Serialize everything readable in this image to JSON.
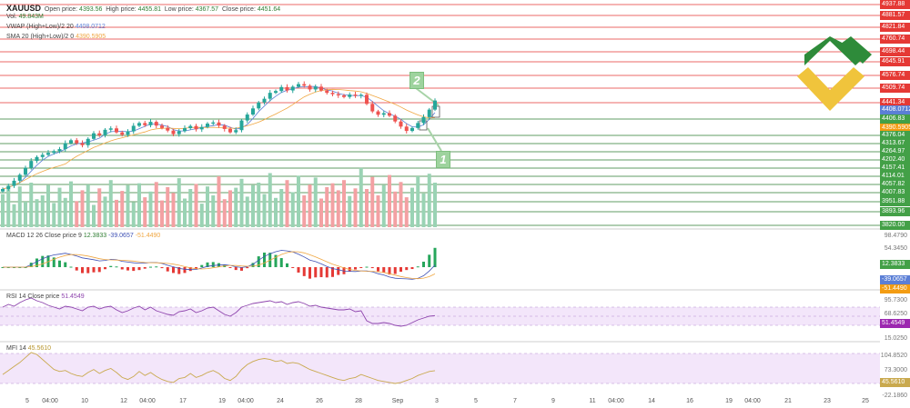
{
  "header": {
    "symbol": "XAUUSD",
    "ohlc": [
      {
        "label": "Open price:",
        "value": "4393.56"
      },
      {
        "label": "High price:",
        "value": "4455.81"
      },
      {
        "label": "Low price:",
        "value": "4367.57"
      },
      {
        "label": "Close price:",
        "value": "4451.64"
      }
    ],
    "vol": {
      "label": "Vol.",
      "value": "49.843M"
    },
    "vwap": {
      "label": "VWAP (High+Low)/2 20",
      "value": "4408.0712"
    },
    "sma": {
      "label": "SMA 20 (High+Low)/2 0",
      "value": "4390.5905"
    }
  },
  "indicators": {
    "macd": {
      "label": "MACD 12 26 Close price 9",
      "v1": "12.3833",
      "v2": "-39.0657",
      "v3": "-51.4490"
    },
    "rsi": {
      "label": "RSI 14 Close price",
      "value": "51.4549"
    },
    "mfi": {
      "label": "MFI 14",
      "value": "45.5610"
    }
  },
  "colors": {
    "up": "#26a69a",
    "down": "#ef5350",
    "vol_up": "#9ad3b4",
    "vol_down": "#f3a1a3",
    "level_red": "#e53935",
    "level_green": "#2e7d32",
    "vwap": "#5b7fd6",
    "sma": "#f0a742",
    "macd_fast": "#3f51b5",
    "macd_signal": "#f0a742",
    "osc": "#a97fc4",
    "mfi_line": "#c9a94e",
    "band": "#eedcf8"
  },
  "price_tags": [
    {
      "value": "4937.88",
      "kind": "red"
    },
    {
      "value": "4881.57",
      "kind": "red"
    },
    {
      "value": "4821.84",
      "kind": "red"
    },
    {
      "value": "4760.74",
      "kind": "red"
    },
    {
      "value": "4698.44",
      "kind": "red"
    },
    {
      "value": "4645.91",
      "kind": "red"
    },
    {
      "value": "4576.74",
      "kind": "red"
    },
    {
      "value": "4509.74",
      "kind": "red"
    },
    {
      "value": "4441.34",
      "kind": "red"
    },
    {
      "value": "4408.0712",
      "kind": "blue"
    },
    {
      "value": "4406.83",
      "kind": "green"
    },
    {
      "value": "4390.5905",
      "kind": "orange"
    },
    {
      "value": "4376.04",
      "kind": "green"
    },
    {
      "value": "4313.67",
      "kind": "green"
    },
    {
      "value": "4264.97",
      "kind": "green"
    },
    {
      "value": "4202.40",
      "kind": "green"
    },
    {
      "value": "4157.41",
      "kind": "green"
    },
    {
      "value": "4114.01",
      "kind": "green"
    },
    {
      "value": "4057.82",
      "kind": "green"
    },
    {
      "value": "4007.83",
      "kind": "green"
    },
    {
      "value": "3951.88",
      "kind": "green"
    },
    {
      "value": "3893.96",
      "kind": "green"
    },
    {
      "value": "3820.00",
      "kind": "green"
    }
  ],
  "right_axis": {
    "macd_ticks": [
      "98.4790",
      "54.3450"
    ],
    "macd_tags": [
      {
        "value": "12.3833",
        "kind": "green"
      },
      {
        "value": "-39.0657",
        "kind": "blue"
      },
      {
        "value": "-51.4490",
        "kind": "orange"
      }
    ],
    "rsi_ticks": [
      "95.7300",
      "68.6250",
      "15.0250"
    ],
    "rsi_tag": "51.4549",
    "mfi_ticks": [
      "104.8520",
      "73.3000",
      "-22.1860"
    ],
    "mfi_tag": "45.5610"
  },
  "x_axis": [
    "5",
    "04:00",
    "10",
    "12",
    "04:00",
    "17",
    "19",
    "04:00",
    "24",
    "26",
    "28",
    "Sep",
    "3",
    "5",
    "7",
    "9",
    "11",
    "04:00",
    "14",
    "16",
    "19",
    "04:00",
    "21",
    "23",
    "25"
  ],
  "markers": [
    "2",
    "1"
  ],
  "chart_data": {
    "type": "candlestick",
    "close": [
      4004,
      4020,
      4046,
      4076,
      4111,
      4146,
      4166,
      4177,
      4187,
      4196,
      4206,
      4236,
      4251,
      4236,
      4226,
      4258,
      4286,
      4276,
      4304,
      4311,
      4291,
      4279,
      4296,
      4324,
      4338,
      4327,
      4344,
      4325,
      4313,
      4300,
      4282,
      4297,
      4312,
      4323,
      4306,
      4318,
      4335,
      4341,
      4325,
      4308,
      4291,
      4302,
      4351,
      4381,
      4412,
      4442,
      4461,
      4491,
      4500,
      4520,
      4503,
      4522,
      4535,
      4527,
      4508,
      4522,
      4503,
      4491,
      4484,
      4478,
      4470,
      4482,
      4476,
      4481,
      4435,
      4397,
      4380,
      4388,
      4375,
      4346,
      4320,
      4298,
      4313,
      4338,
      4368,
      4406,
      4452
    ],
    "volume": [
      0.52,
      0.6,
      0.36,
      0.64,
      0.4,
      0.7,
      0.44,
      0.5,
      0.66,
      0.38,
      0.62,
      0.46,
      0.72,
      0.41,
      0.58,
      0.67,
      0.35,
      0.61,
      0.48,
      0.74,
      0.43,
      0.57,
      0.66,
      0.39,
      0.69,
      0.47,
      0.56,
      0.71,
      0.42,
      0.63,
      0.54,
      0.77,
      0.45,
      0.6,
      0.68,
      0.37,
      0.64,
      0.5,
      0.8,
      0.44,
      0.58,
      0.62,
      0.76,
      0.48,
      0.66,
      0.7,
      0.52,
      0.85,
      0.46,
      0.6,
      0.74,
      0.55,
      0.81,
      0.5,
      0.67,
      0.78,
      0.45,
      0.63,
      0.69,
      0.58,
      0.74,
      0.49,
      0.61,
      0.93,
      0.6,
      0.79,
      0.5,
      0.66,
      0.82,
      0.56,
      0.71,
      0.47,
      0.62,
      0.8,
      0.53,
      0.84,
      0.7
    ],
    "rsi": [
      70,
      76,
      72,
      80,
      86,
      90,
      84,
      80,
      74,
      70,
      66,
      72,
      70,
      66,
      62,
      70,
      72,
      66,
      70,
      72,
      64,
      58,
      62,
      68,
      72,
      64,
      70,
      62,
      58,
      54,
      52,
      60,
      62,
      66,
      58,
      62,
      68,
      70,
      62,
      54,
      50,
      58,
      70,
      74,
      78,
      80,
      82,
      84,
      80,
      82,
      76,
      80,
      82,
      78,
      72,
      74,
      70,
      68,
      66,
      64,
      64,
      66,
      60,
      62,
      40,
      34,
      34,
      36,
      34,
      30,
      28,
      30,
      36,
      42,
      46,
      50,
      51.45
    ],
    "mfi": [
      38,
      46,
      54,
      62,
      72,
      82,
      78,
      68,
      58,
      48,
      44,
      46,
      40,
      36,
      34,
      42,
      48,
      40,
      46,
      50,
      42,
      32,
      28,
      34,
      44,
      36,
      42,
      34,
      28,
      24,
      22,
      30,
      32,
      40,
      32,
      36,
      42,
      46,
      40,
      30,
      26,
      34,
      48,
      58,
      64,
      68,
      70,
      68,
      64,
      66,
      60,
      62,
      60,
      54,
      48,
      44,
      40,
      36,
      32,
      28,
      26,
      30,
      32,
      38,
      34,
      30,
      26,
      24,
      22,
      20,
      22,
      26,
      30,
      36,
      40,
      44,
      45.56
    ]
  }
}
